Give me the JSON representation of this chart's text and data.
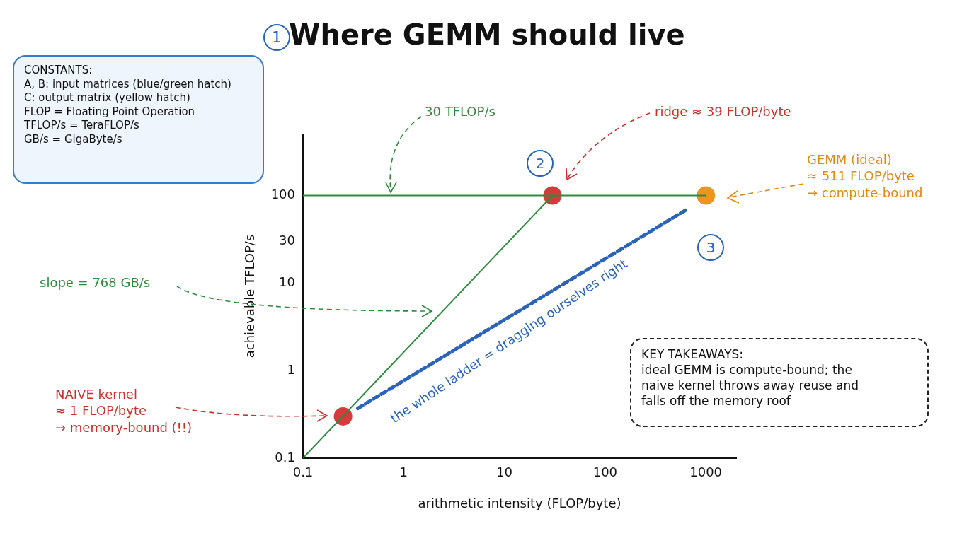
{
  "chart_data": {
    "type": "line",
    "title": "Where GEMM should live",
    "xlabel": "arithmetic intensity (FLOP/byte)",
    "ylabel": "achievable TFLOP/s",
    "log": "xy",
    "xlim": [
      0.1,
      2000
    ],
    "ylim": [
      0.1,
      500
    ],
    "xticks": [
      0.1,
      1,
      10,
      100,
      1000
    ],
    "yticks": [
      0.1,
      1,
      10,
      30,
      100
    ],
    "grid": false,
    "legend": false,
    "series": [
      {
        "color": "#2e8b3e",
        "x": [
          0.1,
          1000
        ],
        "values": [
          100,
          100
        ],
        "marker": "none"
      },
      {
        "color": "#2e8b3e",
        "x": [
          0.1,
          30
        ],
        "values": [
          0.1,
          100
        ],
        "marker": "none"
      },
      {
        "color": "#2a63b8",
        "x": [
          0.35,
          670
        ],
        "values": [
          0.37,
          71
        ],
        "marker": "none",
        "line_style": "dashed"
      },
      {
        "type": "scatter",
        "color": "#d63a3a",
        "x": [
          30
        ],
        "values": [
          100
        ],
        "marker": "circle"
      },
      {
        "type": "scatter",
        "color": "#d63a3a",
        "x": [
          0.25
        ],
        "values": [
          0.3
        ],
        "marker": "circle"
      },
      {
        "type": "scatter",
        "color": "#f0941e",
        "x": [
          1000
        ],
        "values": [
          100
        ],
        "marker": "circle"
      }
    ],
    "annotations": [
      "1",
      "CONSTANTS:\nA, B: input matrices (blue/green hatch)\nC: output matrix (yellow hatch)\nFLOP = Floating Point Operation\nTFLOP/s = TeraFLOP/s\nGB/s = GigaByte/s",
      "30 TFLOP/s",
      "ridge ≈ 39 FLOP/byte",
      "2",
      "GEMM (ideal)\n≈ 511 FLOP/byte\n→ compute-bound",
      "3",
      "slope = 768 GB/s",
      "the whole ladder = dragging ourselves right",
      "NAIVE kernel\n≈ 1 FLOP/byte\n→ memory-bound (!!)",
      "KEY TAKEAWAYS:\nideal GEMM is compute-bound; the\nnaive kernel throws away reuse and\nfalls off the memory roof"
    ]
  }
}
